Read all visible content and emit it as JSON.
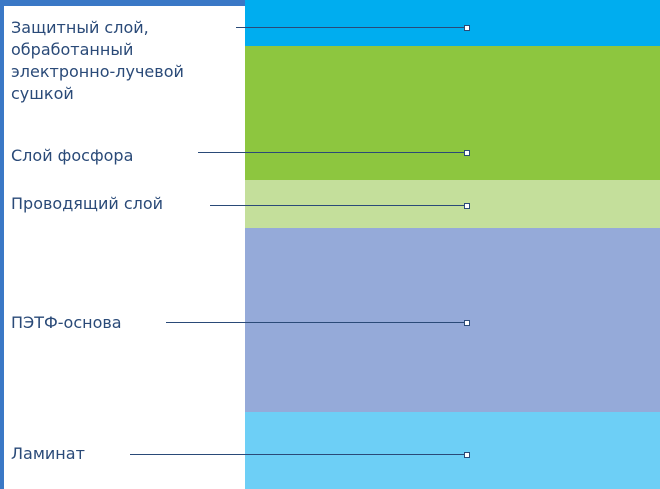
{
  "diagram": {
    "layers": [
      {
        "id": "protective",
        "lines": [
          "Защитный слой,",
          "обработанный",
          "электронно-лучевой",
          "сушкой"
        ],
        "color": "#00adef"
      },
      {
        "id": "phosphor",
        "lines": [
          "Слой фосфора"
        ],
        "color": "#8dc63f"
      },
      {
        "id": "conductive",
        "lines": [
          "Проводящий слой"
        ],
        "color": "#c4df9b"
      },
      {
        "id": "pet",
        "lines": [
          "ПЭТФ-основа"
        ],
        "color": "#95aad9"
      },
      {
        "id": "laminate",
        "lines": [
          "Ламинат"
        ],
        "color": "#6dcff6"
      }
    ],
    "frame_color": "#3a78c6",
    "label_color": "#2a4a78"
  }
}
